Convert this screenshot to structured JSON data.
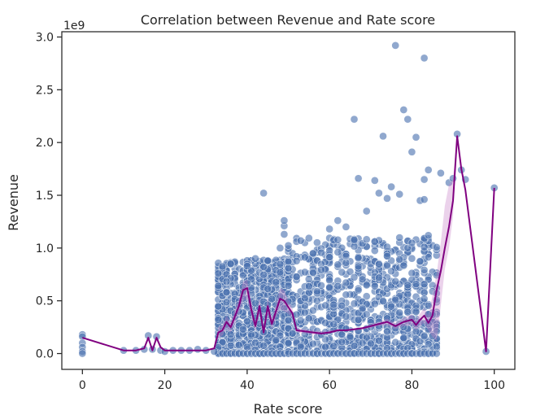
{
  "chart_data": {
    "type": "scatter",
    "title": "Correlation between Revenue and Rate score",
    "xlabel": "Rate score",
    "ylabel": "Revenue",
    "y_offset_label": "1e9",
    "xlim": [
      -5,
      105
    ],
    "ylim": [
      -0.15,
      3.05
    ],
    "y_scale_factor": 1000000000,
    "grid": false,
    "xticks": [
      0,
      20,
      40,
      60,
      80,
      100
    ],
    "xtick_labels": [
      "0",
      "20",
      "40",
      "60",
      "80",
      "100"
    ],
    "yticks": [
      0.0,
      0.5,
      1.0,
      1.5,
      2.0,
      2.5,
      3.0
    ],
    "ytick_labels": [
      "0.0",
      "0.5",
      "1.0",
      "1.5",
      "2.0",
      "2.5",
      "3.0"
    ],
    "colors": {
      "scatter": "#4c72b0",
      "mean_line": "#800080",
      "ci_band": "#c77fc7",
      "axes": "#262626"
    },
    "series": [
      {
        "kind": "scatter",
        "notable_points": [
          [
            0,
            0.18
          ],
          [
            0,
            0.16
          ],
          [
            0,
            0.1
          ],
          [
            0,
            0.06
          ],
          [
            0,
            0.02
          ],
          [
            0,
            0.0
          ],
          [
            10,
            0.03
          ],
          [
            13,
            0.03
          ],
          [
            15,
            0.04
          ],
          [
            16,
            0.17
          ],
          [
            17,
            0.04
          ],
          [
            18,
            0.16
          ],
          [
            19,
            0.03
          ],
          [
            20,
            0.02
          ],
          [
            22,
            0.03
          ],
          [
            24,
            0.03
          ],
          [
            26,
            0.03
          ],
          [
            28,
            0.04
          ],
          [
            30,
            0.03
          ],
          [
            32,
            0.02
          ],
          [
            33,
            0.32
          ],
          [
            35,
            0.33
          ],
          [
            37,
            0.38
          ],
          [
            38,
            0.4
          ],
          [
            40,
            0.83
          ],
          [
            42,
            0.9
          ],
          [
            44,
            1.52
          ],
          [
            45,
            0.88
          ],
          [
            48,
            1.0
          ],
          [
            49,
            1.13
          ],
          [
            49,
            1.21
          ],
          [
            49,
            1.26
          ],
          [
            60,
            1.18
          ],
          [
            62,
            1.26
          ],
          [
            64,
            1.2
          ],
          [
            66,
            2.22
          ],
          [
            67,
            1.66
          ],
          [
            69,
            1.35
          ],
          [
            71,
            1.64
          ],
          [
            72,
            1.52
          ],
          [
            73,
            2.06
          ],
          [
            74,
            1.47
          ],
          [
            75,
            1.58
          ],
          [
            76,
            2.92
          ],
          [
            77,
            1.51
          ],
          [
            78,
            2.31
          ],
          [
            79,
            2.22
          ],
          [
            80,
            1.91
          ],
          [
            81,
            2.05
          ],
          [
            82,
            1.45
          ],
          [
            83,
            2.8
          ],
          [
            83,
            1.65
          ],
          [
            83,
            1.46
          ],
          [
            84,
            1.74
          ],
          [
            84,
            1.12
          ],
          [
            86,
            0.51
          ],
          [
            87,
            1.71
          ],
          [
            89,
            1.62
          ],
          [
            90,
            1.66
          ],
          [
            91,
            2.08
          ],
          [
            92,
            1.74
          ],
          [
            93,
            1.65
          ],
          [
            98,
            0.02
          ],
          [
            100,
            1.57
          ]
        ],
        "dense_regions": [
          {
            "x_min": 33,
            "x_max": 50,
            "y_min": 0.0,
            "y_max": 0.9
          },
          {
            "x_min": 50,
            "x_max": 86,
            "y_min": 0.0,
            "y_max": 1.1
          }
        ]
      },
      {
        "kind": "line",
        "x": [
          0,
          10,
          13,
          15,
          16,
          17,
          18,
          19,
          20,
          25,
          30,
          32,
          33,
          34,
          35,
          36,
          37,
          38,
          39,
          40,
          41,
          42,
          43,
          44,
          45,
          46,
          47,
          48,
          49,
          50,
          51,
          52,
          54,
          56,
          58,
          60,
          62,
          64,
          66,
          68,
          70,
          72,
          74,
          76,
          78,
          80,
          81,
          82,
          83,
          84,
          85,
          86,
          87,
          88,
          89,
          90,
          91,
          92,
          93,
          98,
          100
        ],
        "y": [
          0.15,
          0.03,
          0.03,
          0.05,
          0.15,
          0.03,
          0.15,
          0.06,
          0.03,
          0.03,
          0.03,
          0.05,
          0.2,
          0.22,
          0.3,
          0.25,
          0.35,
          0.45,
          0.6,
          0.62,
          0.42,
          0.26,
          0.45,
          0.2,
          0.45,
          0.28,
          0.4,
          0.52,
          0.5,
          0.44,
          0.38,
          0.22,
          0.21,
          0.2,
          0.19,
          0.2,
          0.22,
          0.22,
          0.23,
          0.24,
          0.26,
          0.28,
          0.3,
          0.26,
          0.3,
          0.32,
          0.27,
          0.32,
          0.36,
          0.29,
          0.36,
          0.6,
          0.78,
          1.0,
          1.2,
          1.45,
          2.06,
          1.75,
          1.55,
          0.02,
          1.57
        ],
        "ci_lower": [
          0.15,
          0.03,
          0.03,
          0.05,
          0.12,
          0.03,
          0.12,
          0.05,
          0.03,
          0.03,
          0.03,
          0.04,
          0.15,
          0.17,
          0.24,
          0.2,
          0.28,
          0.38,
          0.5,
          0.52,
          0.34,
          0.21,
          0.37,
          0.16,
          0.37,
          0.23,
          0.33,
          0.42,
          0.4,
          0.38,
          0.33,
          0.2,
          0.19,
          0.18,
          0.18,
          0.19,
          0.21,
          0.21,
          0.22,
          0.23,
          0.24,
          0.26,
          0.27,
          0.23,
          0.26,
          0.27,
          0.22,
          0.26,
          0.29,
          0.22,
          0.16,
          0.12,
          0.45,
          0.8,
          1.0,
          1.3,
          2.03,
          1.75,
          1.55,
          0.02,
          1.57
        ],
        "ci_upper": [
          0.15,
          0.03,
          0.03,
          0.05,
          0.18,
          0.03,
          0.18,
          0.07,
          0.03,
          0.03,
          0.03,
          0.06,
          0.25,
          0.27,
          0.36,
          0.3,
          0.42,
          0.52,
          0.68,
          0.7,
          0.5,
          0.31,
          0.53,
          0.24,
          0.53,
          0.33,
          0.47,
          0.62,
          0.6,
          0.5,
          0.43,
          0.24,
          0.23,
          0.22,
          0.21,
          0.22,
          0.23,
          0.23,
          0.24,
          0.25,
          0.28,
          0.3,
          0.33,
          0.29,
          0.34,
          0.37,
          0.32,
          0.38,
          0.43,
          0.36,
          0.55,
          0.75,
          1.05,
          1.4,
          1.6,
          1.65,
          2.09,
          1.75,
          1.55,
          0.02,
          1.57
        ]
      }
    ]
  }
}
